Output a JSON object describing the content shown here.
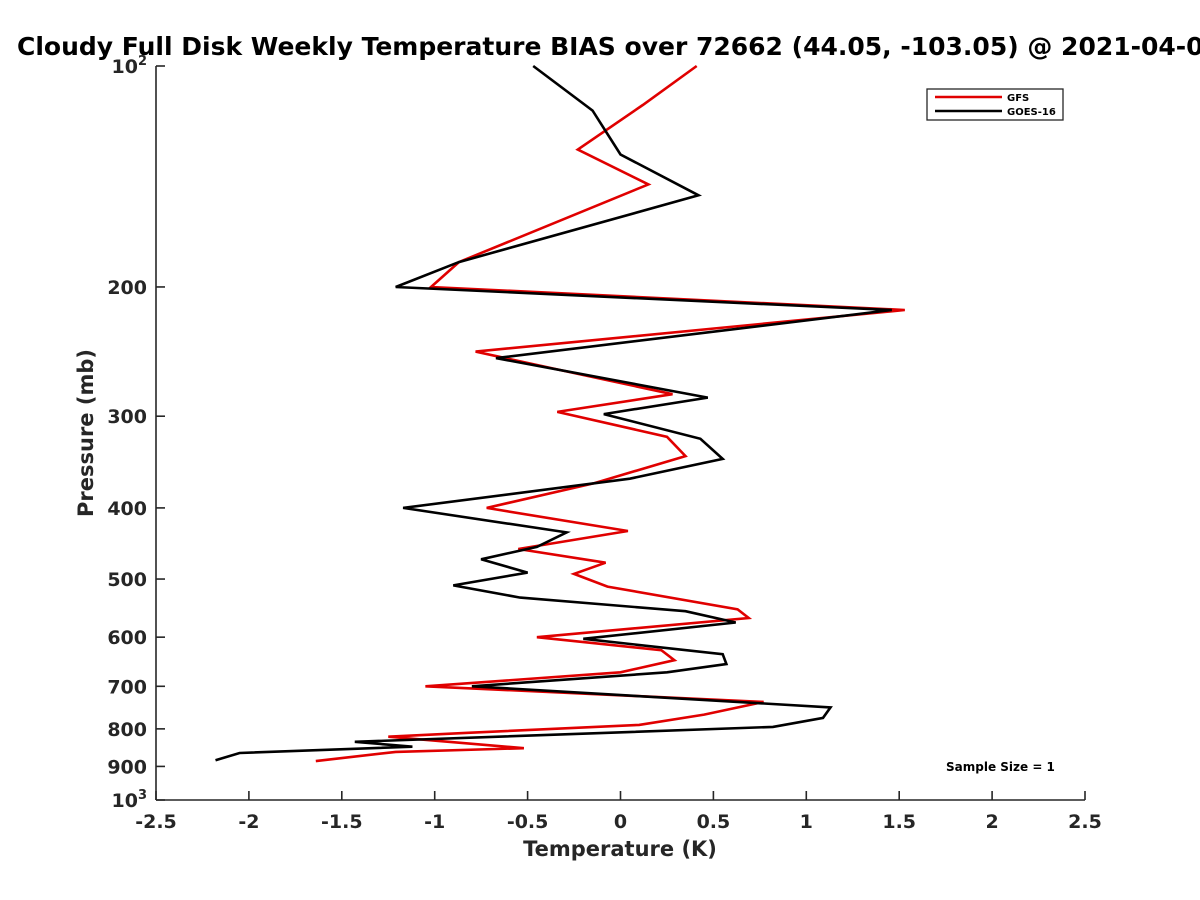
{
  "chart_data": {
    "type": "line",
    "title": "Cloudy Full Disk Weekly Temperature BIAS over 72662 (44.05, -103.05) @ 2021-04-0",
    "xlabel": "Temperature (K)",
    "ylabel": "Pressure (mb)",
    "xlim": [
      -2.5,
      2.5
    ],
    "ylim": [
      100,
      1000
    ],
    "y_scale": "log",
    "y_reversed": true,
    "x_ticks": [
      "-2.5",
      "-2",
      "-1.5",
      "-1",
      "-0.5",
      "0",
      "0.5",
      "1",
      "1.5",
      "2",
      "2.5"
    ],
    "y_ticks": [
      {
        "value": 100,
        "label": "10",
        "sup": "2"
      },
      {
        "value": 200,
        "label": "200",
        "sup": ""
      },
      {
        "value": 300,
        "label": "300",
        "sup": ""
      },
      {
        "value": 400,
        "label": "400",
        "sup": ""
      },
      {
        "value": 500,
        "label": "500",
        "sup": ""
      },
      {
        "value": 600,
        "label": "600",
        "sup": ""
      },
      {
        "value": 700,
        "label": "700",
        "sup": ""
      },
      {
        "value": 800,
        "label": "800",
        "sup": ""
      },
      {
        "value": 900,
        "label": "900",
        "sup": ""
      },
      {
        "value": 1000,
        "label": "10",
        "sup": "3"
      }
    ],
    "grid": false,
    "legend_position": "top-right",
    "annotation": "Sample Size = 1",
    "series": [
      {
        "name": "GFS",
        "color": "#e00000",
        "points": [
          [
            0.41,
            100
          ],
          [
            0.12,
            113
          ],
          [
            -0.23,
            130
          ],
          [
            0.15,
            145
          ],
          [
            -0.87,
            185
          ],
          [
            -1.02,
            200
          ],
          [
            1.53,
            215
          ],
          [
            -0.78,
            245
          ],
          [
            -0.31,
            260
          ],
          [
            0.28,
            280
          ],
          [
            -0.34,
            296
          ],
          [
            0.25,
            320
          ],
          [
            0.35,
            340
          ],
          [
            -0.14,
            370
          ],
          [
            -0.72,
            400
          ],
          [
            0.04,
            430
          ],
          [
            -0.55,
            455
          ],
          [
            -0.08,
            475
          ],
          [
            -0.25,
            492
          ],
          [
            -0.07,
            512
          ],
          [
            0.63,
            550
          ],
          [
            0.69,
            565
          ],
          [
            -0.45,
            600
          ],
          [
            0.22,
            625
          ],
          [
            0.29,
            645
          ],
          [
            0.0,
            670
          ],
          [
            -1.05,
            700
          ],
          [
            0.77,
            735
          ],
          [
            0.45,
            765
          ],
          [
            0.1,
            790
          ],
          [
            -0.82,
            810
          ],
          [
            -1.25,
            820
          ],
          [
            -0.52,
            850
          ],
          [
            -1.21,
            860
          ],
          [
            -1.64,
            885
          ]
        ]
      },
      {
        "name": "GOES-16",
        "color": "#000000",
        "points": [
          [
            -0.47,
            100
          ],
          [
            -0.15,
            115
          ],
          [
            0.0,
            132
          ],
          [
            0.42,
            150
          ],
          [
            -0.87,
            185
          ],
          [
            -1.21,
            200
          ],
          [
            1.46,
            215
          ],
          [
            -0.67,
            250
          ],
          [
            0.47,
            283
          ],
          [
            -0.09,
            298
          ],
          [
            0.43,
            322
          ],
          [
            0.55,
            343
          ],
          [
            0.05,
            365
          ],
          [
            -1.17,
            400
          ],
          [
            -0.29,
            432
          ],
          [
            -0.45,
            452
          ],
          [
            -0.75,
            470
          ],
          [
            -0.5,
            490
          ],
          [
            -0.9,
            510
          ],
          [
            -0.54,
            530
          ],
          [
            0.35,
            553
          ],
          [
            0.62,
            573
          ],
          [
            -0.2,
            603
          ],
          [
            0.55,
            633
          ],
          [
            0.57,
            653
          ],
          [
            0.25,
            670
          ],
          [
            -0.8,
            700
          ],
          [
            1.13,
            748
          ],
          [
            1.09,
            773
          ],
          [
            0.82,
            795
          ],
          [
            -1.43,
            833
          ],
          [
            -1.12,
            846
          ],
          [
            -2.05,
            863
          ],
          [
            -2.18,
            883
          ]
        ]
      }
    ]
  }
}
